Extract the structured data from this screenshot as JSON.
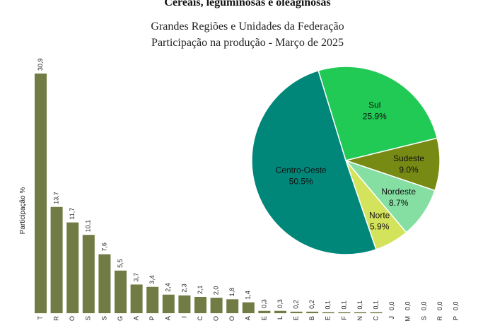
{
  "header": {
    "title": "Cereais, leguminosas e oleaginosas",
    "subtitle_1": "Grandes Regiões e Unidades da Federação",
    "subtitle_2": "Participação na produção - Março de 2025"
  },
  "chart_data": [
    {
      "type": "bar",
      "ylabel": "Participação %",
      "ylim": [
        0,
        32
      ],
      "grid": false,
      "color": "#717b44",
      "categories": [
        "MT",
        "PR",
        "GO",
        "RS",
        "MS",
        "MG",
        "BA",
        "SP",
        "MA",
        "PI",
        "SC",
        "TO",
        "RO",
        "PA",
        "SE",
        "AL",
        "PE",
        "PB",
        "CE",
        "DF",
        "RN",
        "AC",
        "RJ",
        "AM",
        "ES",
        "RR",
        "AP"
      ],
      "category_labels_visible": [
        "T",
        "R",
        "O",
        "S",
        "S",
        "G",
        "A",
        "P",
        "A",
        "I",
        "C",
        "O",
        "O",
        "A",
        "E",
        "L",
        "E",
        "B",
        "E",
        "F",
        "N",
        "C",
        "J",
        "M",
        "S",
        "R",
        "P"
      ],
      "values": [
        30.9,
        13.7,
        11.7,
        10.1,
        7.6,
        5.5,
        3.7,
        3.4,
        2.4,
        2.3,
        2.1,
        2.0,
        1.8,
        1.4,
        0.3,
        0.3,
        0.2,
        0.2,
        0.1,
        0.1,
        0.1,
        0.1,
        0.0,
        0.0,
        0.0,
        0.0,
        0.0
      ],
      "value_labels": [
        "30,9",
        "13,7",
        "11,7",
        "10,1",
        "7,6",
        "5,5",
        "3,7",
        "3,4",
        "2,4",
        "2,3",
        "2,1",
        "2,0",
        "1,8",
        "1,4",
        "0,3",
        "0,3",
        "0,2",
        "0,2",
        "0,1",
        "0,1",
        "0,1",
        "0,1",
        "0,0",
        "0,0",
        "0,0",
        "0,0",
        "0,0"
      ]
    },
    {
      "type": "pie",
      "slices": [
        {
          "label": "Sul",
          "pct_text": "25.9%",
          "value": 25.9,
          "color": "#21c955"
        },
        {
          "label": "Sudeste",
          "pct_text": "9.0%",
          "value": 9.0,
          "color": "#768a14"
        },
        {
          "label": "Nordeste",
          "pct_text": "8.7%",
          "value": 8.7,
          "color": "#85dfa2"
        },
        {
          "label": "Norte",
          "pct_text": "5.9%",
          "value": 5.9,
          "color": "#d4e35c"
        },
        {
          "label": "Centro-Oeste",
          "pct_text": "50.5%",
          "value": 50.5,
          "color": "#00877a"
        }
      ]
    }
  ]
}
